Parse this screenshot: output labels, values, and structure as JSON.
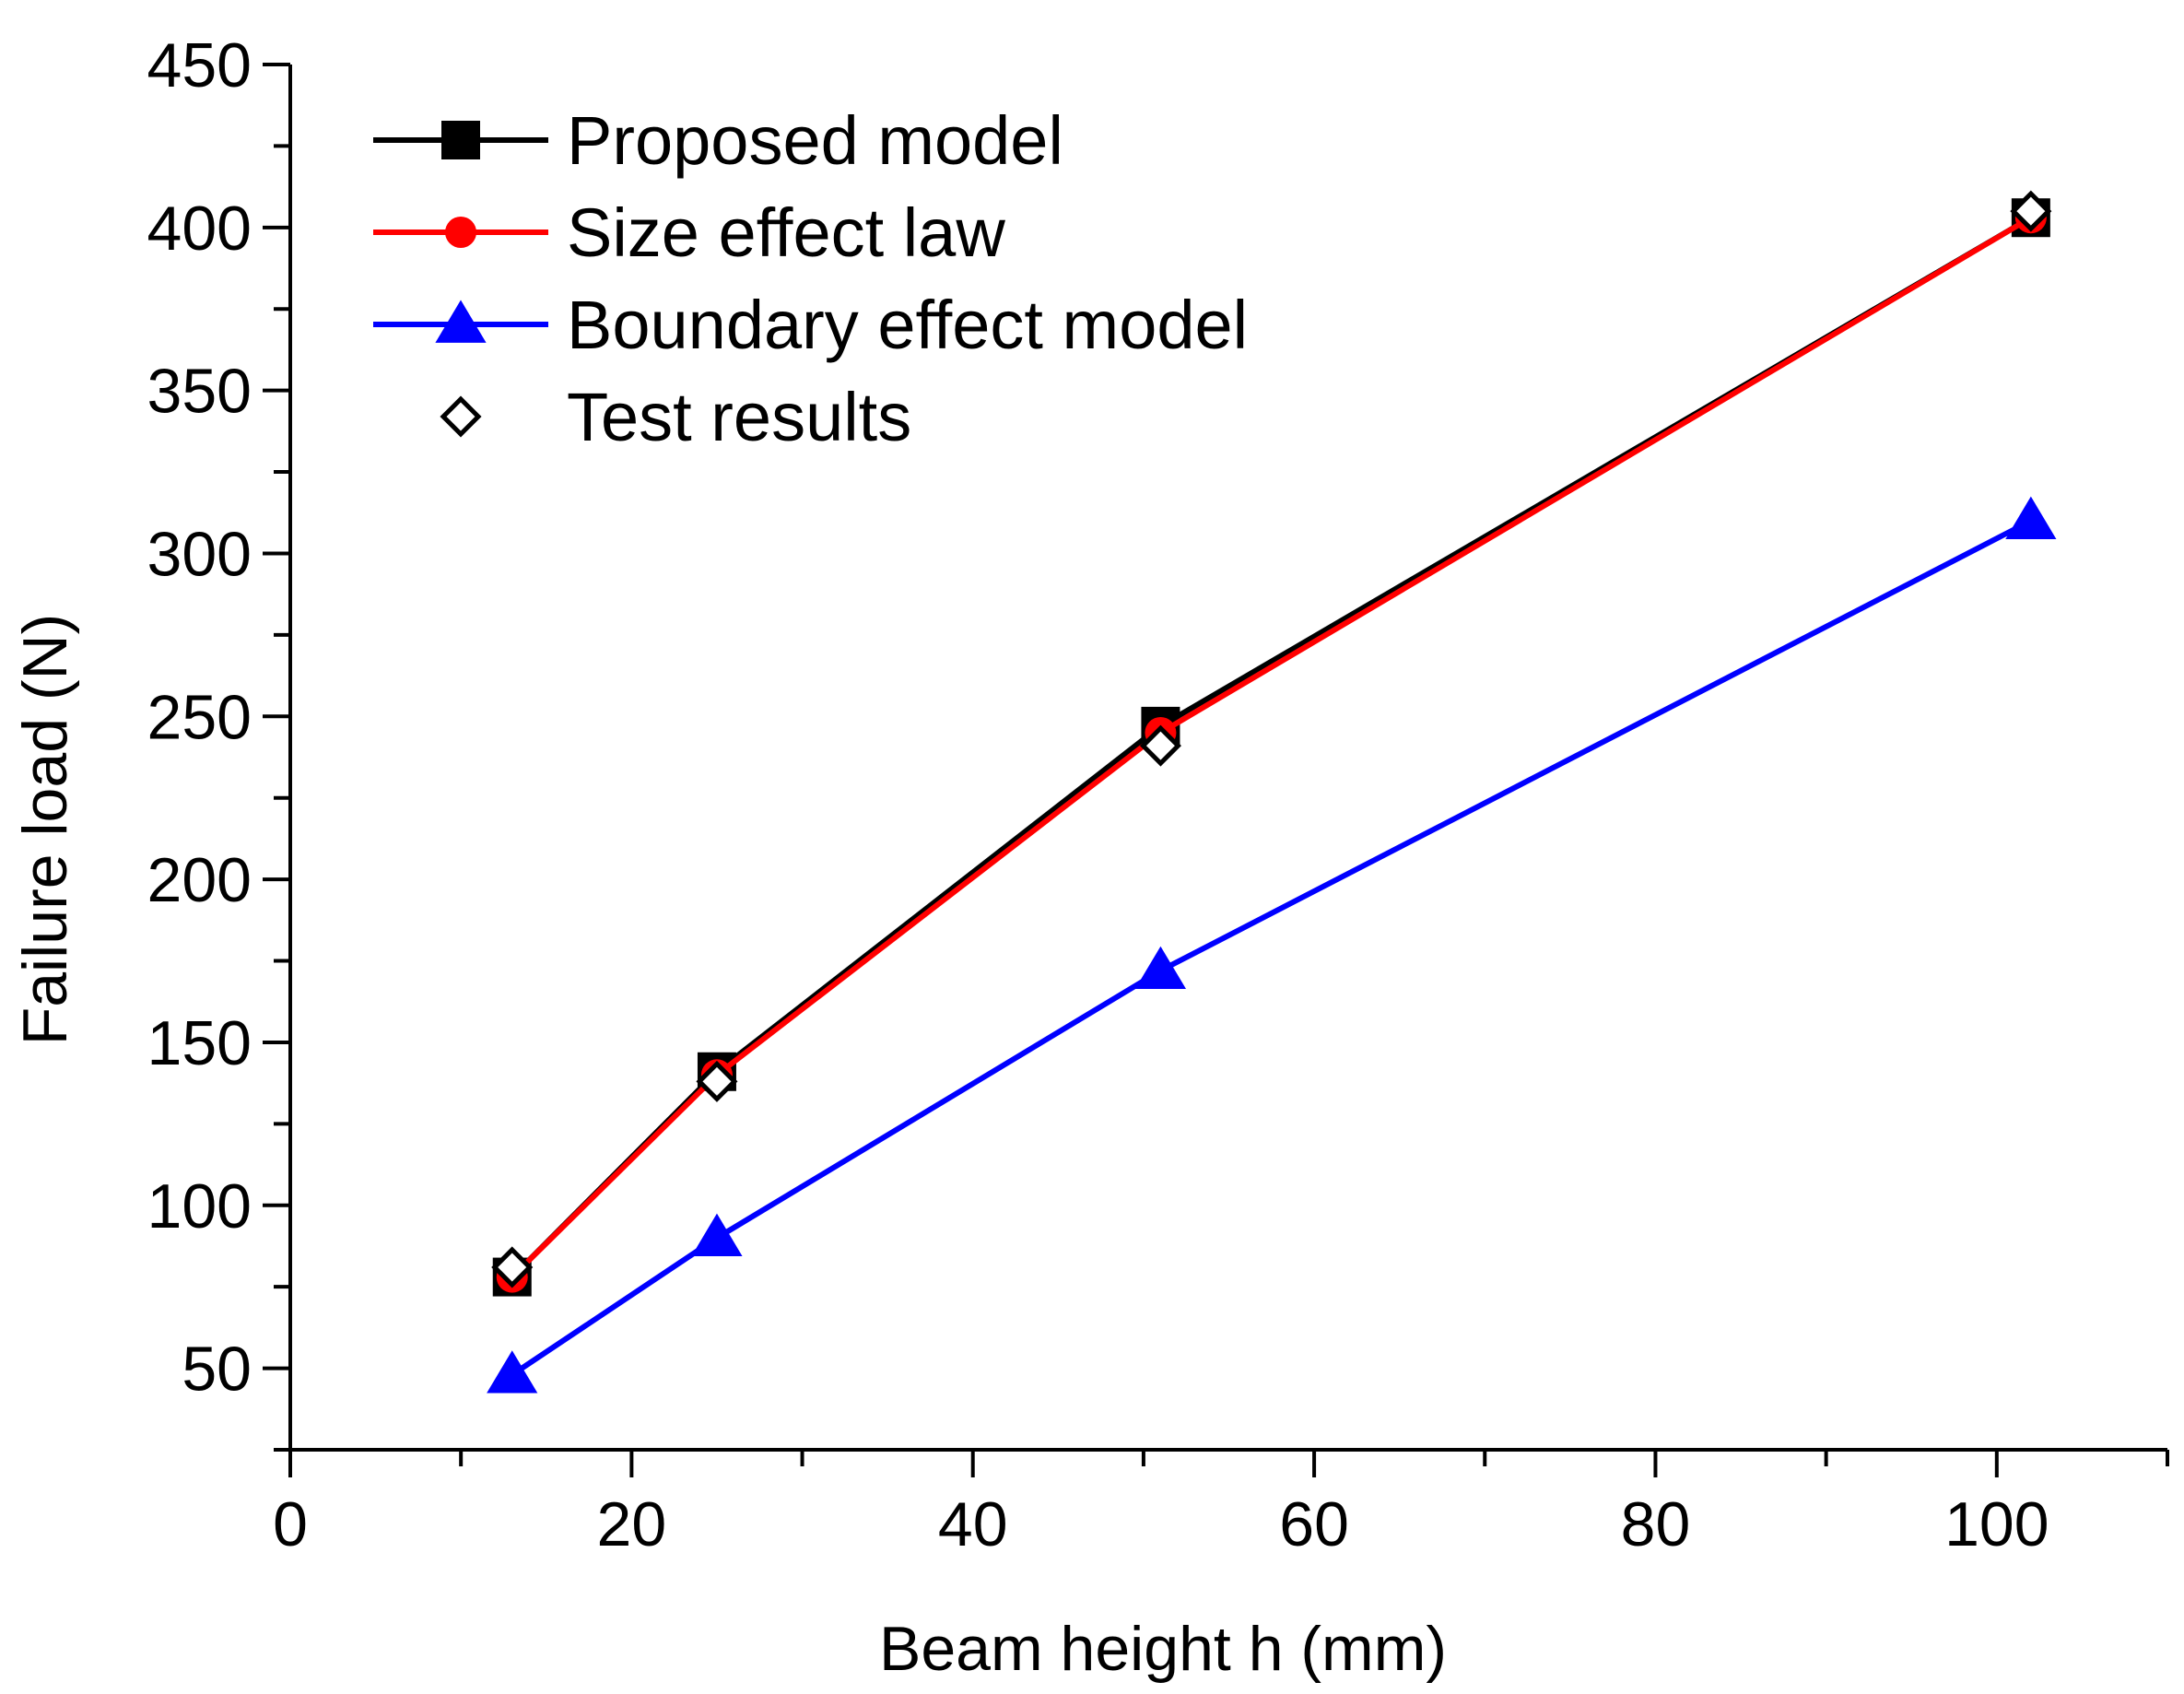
{
  "chart_data": {
    "type": "line",
    "xlabel": "Beam height h (mm)",
    "ylabel": "Failure load (N)",
    "xlim": [
      0,
      110
    ],
    "ylim": [
      25,
      450
    ],
    "xticks": [
      0,
      20,
      40,
      60,
      80,
      100
    ],
    "yticks": [
      50,
      100,
      150,
      200,
      250,
      300,
      350,
      400,
      450
    ],
    "x_minor_step": 10,
    "y_minor_step": 25,
    "grid": false,
    "legend_position": "top-left",
    "series": [
      {
        "name": "Proposed model",
        "color": "#000000",
        "marker": "square",
        "line": true,
        "x": [
          13,
          25,
          51,
          102
        ],
        "y": [
          78,
          141,
          247,
          403
        ]
      },
      {
        "name": "Size effect law",
        "color": "#ff0000",
        "marker": "circle",
        "line": true,
        "x": [
          13,
          25,
          51,
          102
        ],
        "y": [
          78,
          140,
          245,
          403
        ]
      },
      {
        "name": "Boundary effect model",
        "color": "#0000ff",
        "marker": "triangle",
        "line": true,
        "x": [
          13,
          25,
          51,
          102
        ],
        "y": [
          48,
          90,
          172,
          310
        ]
      },
      {
        "name": "Test results",
        "color": "#000000",
        "marker": "diamond-open",
        "line": false,
        "x": [
          13,
          25,
          51,
          102
        ],
        "y": [
          81,
          138,
          241,
          405
        ]
      }
    ]
  }
}
